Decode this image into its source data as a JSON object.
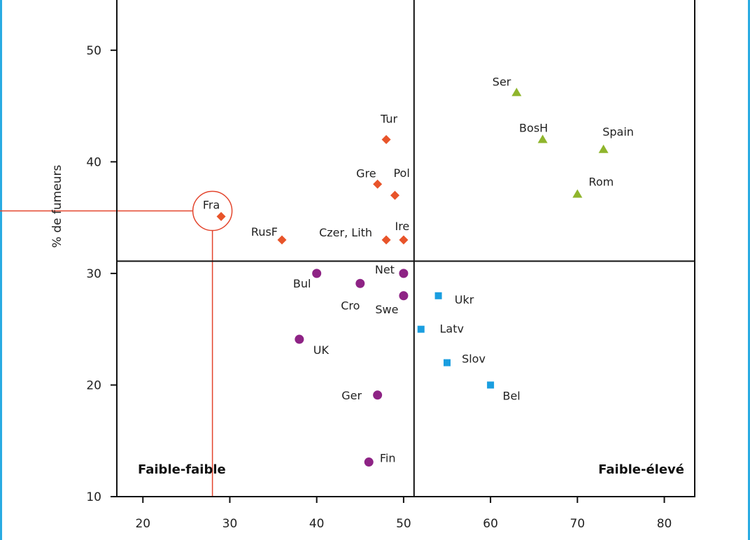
{
  "colors": {
    "frame": "#29abe2",
    "annotation": "#e3452d"
  },
  "chart_data": {
    "type": "scatter",
    "title": "",
    "xlabel": "",
    "ylabel": "% de fumeurs",
    "xlim": [
      17,
      83.5
    ],
    "ylim": [
      10,
      54.5
    ],
    "xticks": [
      20,
      30,
      40,
      50,
      60,
      70,
      80
    ],
    "yticks": [
      10,
      20,
      30,
      40,
      50
    ],
    "grid": false,
    "divider_x": 51.2,
    "divider_y": 31.1,
    "quadrant_labels": [
      "Faible-faible",
      "Faible-élevé"
    ],
    "highlight": {
      "label": "Fra",
      "x": 29,
      "y": 35.1,
      "ref_x": 28,
      "ref_y": 35.6
    },
    "series": [
      {
        "marker": "diamond",
        "color": "#e8542a",
        "points": [
          {
            "label": "Tur",
            "x": 48,
            "y": 42
          },
          {
            "label": "Gre",
            "x": 47,
            "y": 38
          },
          {
            "label": "Pol",
            "x": 49,
            "y": 37
          },
          {
            "label": "Fra",
            "x": 29,
            "y": 35.1
          },
          {
            "label": "RusF",
            "x": 36,
            "y": 33
          },
          {
            "label": "Czer, Lith",
            "x": 48,
            "y": 33
          },
          {
            "label": "Ire",
            "x": 50,
            "y": 33
          }
        ]
      },
      {
        "marker": "triangle",
        "color": "#8fb52c",
        "points": [
          {
            "label": "Ser",
            "x": 63,
            "y": 46.2
          },
          {
            "label": "BosH",
            "x": 66,
            "y": 42
          },
          {
            "label": "Spain",
            "x": 73,
            "y": 41.1
          },
          {
            "label": "Rom",
            "x": 70,
            "y": 37.1
          }
        ]
      },
      {
        "marker": "circle",
        "color": "#8e2385",
        "points": [
          {
            "label": "Bul",
            "x": 40,
            "y": 30
          },
          {
            "label": "Net",
            "x": 50,
            "y": 30
          },
          {
            "label": "Cro",
            "x": 45,
            "y": 29.1
          },
          {
            "label": "Swe",
            "x": 50,
            "y": 28
          },
          {
            "label": "UK",
            "x": 38,
            "y": 24.1
          },
          {
            "label": "Ger",
            "x": 47,
            "y": 19.1
          },
          {
            "label": "Fin",
            "x": 46,
            "y": 13.1
          }
        ]
      },
      {
        "marker": "square",
        "color": "#1a9ee0",
        "points": [
          {
            "label": "Ukr",
            "x": 54,
            "y": 28
          },
          {
            "label": "Latv",
            "x": 52,
            "y": 25
          },
          {
            "label": "Slov",
            "x": 55,
            "y": 22
          },
          {
            "label": "Bel",
            "x": 60,
            "y": 20
          }
        ]
      }
    ]
  }
}
